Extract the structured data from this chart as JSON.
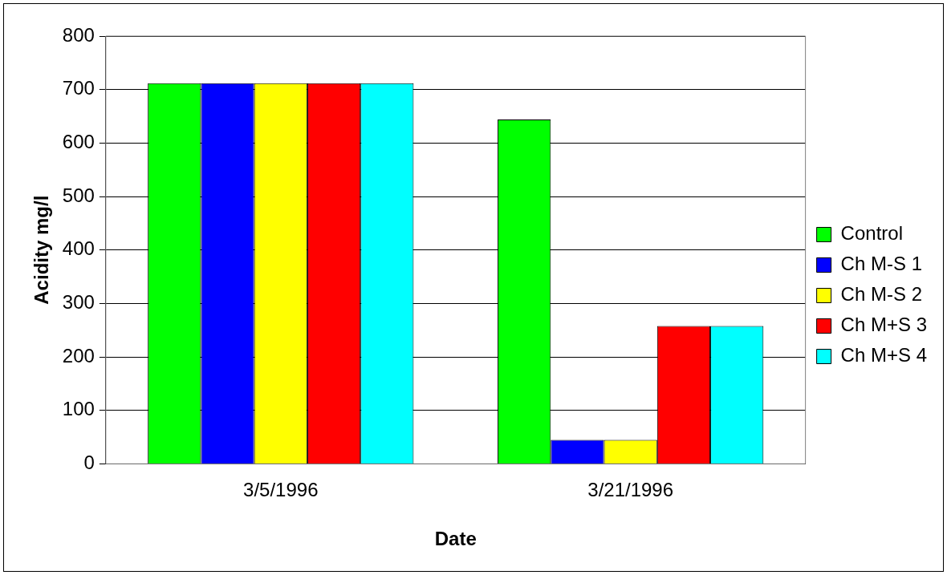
{
  "chart_data": {
    "type": "bar",
    "xlabel": "Date",
    "ylabel": "Acidity mg/l",
    "categories": [
      "3/5/1996",
      "3/21/1996"
    ],
    "series": [
      {
        "name": "Control",
        "color": "#00ff00",
        "values": [
          712,
          644
        ]
      },
      {
        "name": "Ch M-S 1",
        "color": "#0000ff",
        "values": [
          712,
          45
        ]
      },
      {
        "name": "Ch M-S 2",
        "color": "#ffff00",
        "values": [
          712,
          45
        ]
      },
      {
        "name": "Ch M+S 3",
        "color": "#ff0000",
        "values": [
          712,
          258
        ]
      },
      {
        "name": "Ch M+S 4",
        "color": "#00ffff",
        "values": [
          712,
          258
        ]
      }
    ],
    "ylim": [
      0,
      800
    ],
    "yticks": [
      0,
      100,
      200,
      300,
      400,
      500,
      600,
      700,
      800
    ],
    "grid": "y",
    "legend": "right"
  }
}
